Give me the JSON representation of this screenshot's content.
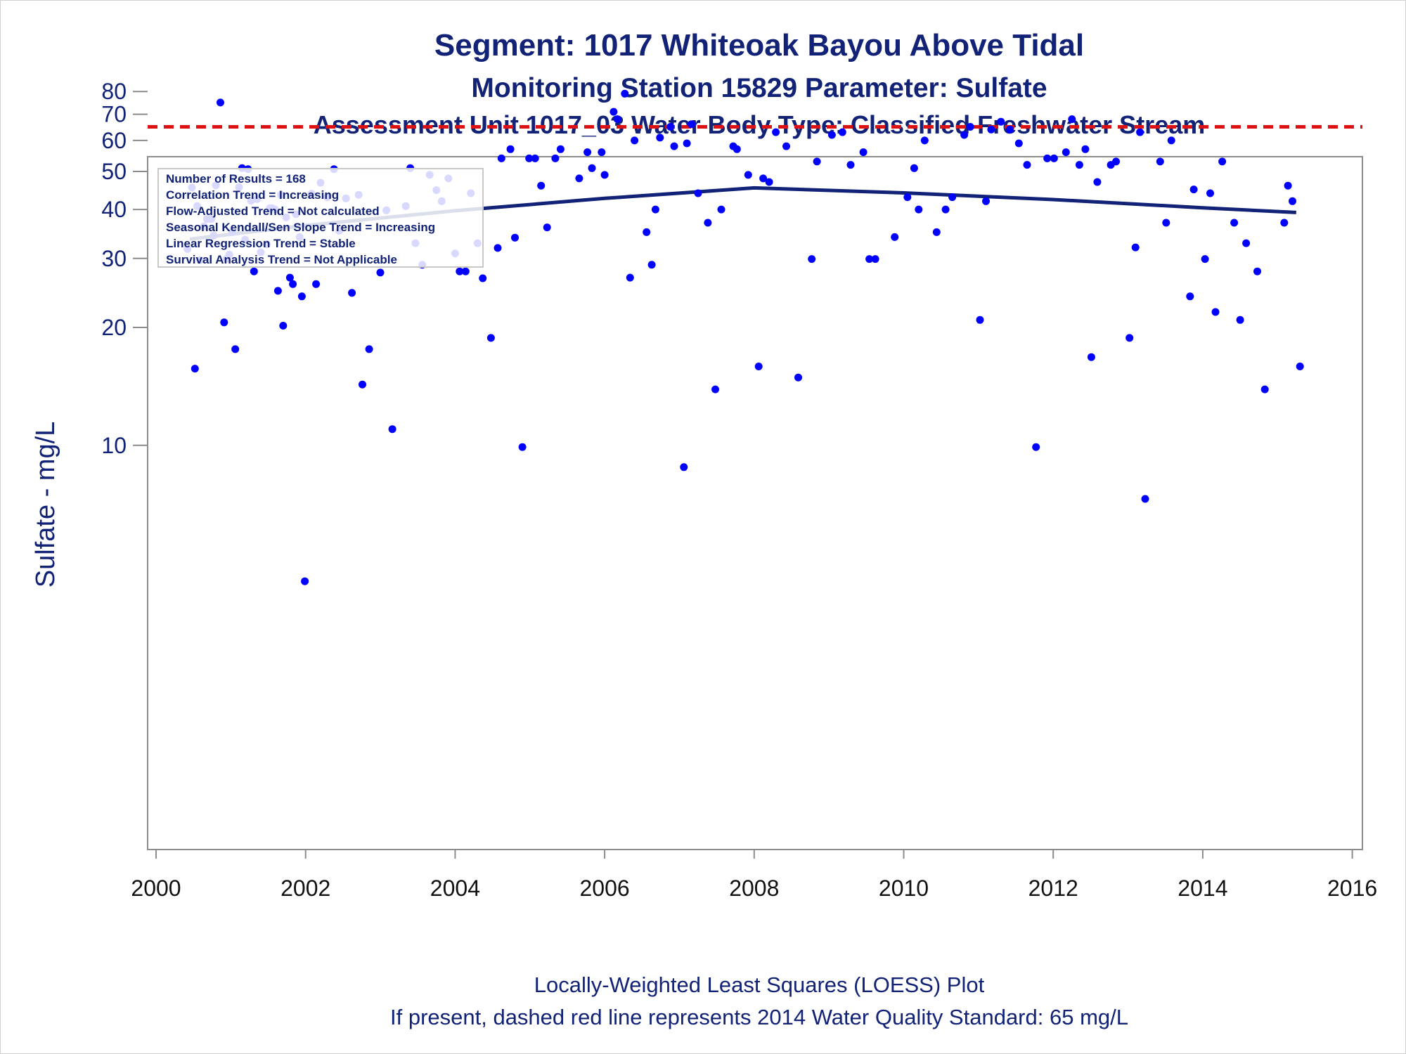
{
  "chart_data": {
    "type": "scatter",
    "title": "Segment: 1017  Whiteoak Bayou Above Tidal",
    "subtitle1": "Monitoring Station 15829 Parameter: Sulfate",
    "subtitle2": "Assessment Unit 1017_03   Water Body Type: Classified Freshwater Stream",
    "ylabel": "Sulfate - mg/L",
    "xlabel": "",
    "footnote1": "Locally-Weighted Least Squares (LOESS) Plot",
    "footnote2": "If present, dashed red line represents 2014 Water Quality Standard: 65    mg/L",
    "x_ticks": [
      "2000",
      "2002",
      "2004",
      "2006",
      "2008",
      "2010",
      "2012",
      "2014",
      "2016"
    ],
    "xlim": [
      2000,
      2016
    ],
    "y_ticks": [
      "10",
      "20",
      "30",
      "40",
      "50",
      "60",
      "70",
      "80"
    ],
    "y_scale": "log",
    "stats_box": [
      "Number of Results = 168",
      "Correlation Trend = Increasing",
      "Flow-Adjusted Trend = Not calculated",
      "Seasonal Kendall/Sen Slope Trend = Increasing",
      "Linear Regression Trend = Stable",
      "Survival Analysis Trend = Not Applicable"
    ],
    "standard": 65,
    "colors": {
      "points": "#0000ff",
      "loess": "#112277",
      "standard": "#dd1111",
      "text": "#112277"
    },
    "loess": [
      {
        "x": 2000.45,
        "y": 33.6
      },
      {
        "x": 2002.0,
        "y": 36.4
      },
      {
        "x": 2004.0,
        "y": 39.7
      },
      {
        "x": 2006.0,
        "y": 42.7
      },
      {
        "x": 2008.0,
        "y": 45.4
      },
      {
        "x": 2010.0,
        "y": 44.1
      },
      {
        "x": 2012.0,
        "y": 42.4
      },
      {
        "x": 2014.0,
        "y": 40.4
      },
      {
        "x": 2015.25,
        "y": 39.3
      }
    ],
    "points": [
      {
        "x": 2000.42,
        "y": 31.7
      },
      {
        "x": 2000.48,
        "y": 45.5
      },
      {
        "x": 2000.52,
        "y": 15.7
      },
      {
        "x": 2000.55,
        "y": 40.8
      },
      {
        "x": 2000.59,
        "y": 29.7
      },
      {
        "x": 2000.64,
        "y": 36.2
      },
      {
        "x": 2000.68,
        "y": 37.8
      },
      {
        "x": 2000.74,
        "y": 37.8
      },
      {
        "x": 2000.77,
        "y": 34.3
      },
      {
        "x": 2000.8,
        "y": 46.1
      },
      {
        "x": 2000.86,
        "y": 75.0
      },
      {
        "x": 2000.91,
        "y": 20.6
      },
      {
        "x": 2000.94,
        "y": 29.9
      },
      {
        "x": 2000.98,
        "y": 30.7
      },
      {
        "x": 2001.02,
        "y": 35.0
      },
      {
        "x": 2001.06,
        "y": 17.6
      },
      {
        "x": 2001.11,
        "y": 45.6
      },
      {
        "x": 2001.15,
        "y": 51.0
      },
      {
        "x": 2001.19,
        "y": 33.5
      },
      {
        "x": 2001.23,
        "y": 50.7
      },
      {
        "x": 2001.27,
        "y": 42.1
      },
      {
        "x": 2001.31,
        "y": 27.8
      },
      {
        "x": 2001.35,
        "y": 42.5
      },
      {
        "x": 2001.4,
        "y": 31.1
      },
      {
        "x": 2001.48,
        "y": 32.6
      },
      {
        "x": 2001.52,
        "y": 40.3
      },
      {
        "x": 2001.55,
        "y": 40.3
      },
      {
        "x": 2001.59,
        "y": 40.0
      },
      {
        "x": 2001.63,
        "y": 24.8
      },
      {
        "x": 2001.67,
        "y": 43.6
      },
      {
        "x": 2001.7,
        "y": 20.2
      },
      {
        "x": 2001.74,
        "y": 38.2
      },
      {
        "x": 2001.79,
        "y": 26.8
      },
      {
        "x": 2001.83,
        "y": 25.8
      },
      {
        "x": 2001.87,
        "y": 38.9
      },
      {
        "x": 2001.92,
        "y": 34.0
      },
      {
        "x": 2001.95,
        "y": 24.0
      },
      {
        "x": 2001.99,
        "y": 4.5
      },
      {
        "x": 2002.08,
        "y": 43.9
      },
      {
        "x": 2002.14,
        "y": 25.8
      },
      {
        "x": 2002.2,
        "y": 46.8
      },
      {
        "x": 2002.29,
        "y": 43.0
      },
      {
        "x": 2002.38,
        "y": 50.7
      },
      {
        "x": 2002.45,
        "y": 35.3
      },
      {
        "x": 2002.54,
        "y": 42.7
      },
      {
        "x": 2002.62,
        "y": 24.5
      },
      {
        "x": 2002.71,
        "y": 43.6
      },
      {
        "x": 2002.76,
        "y": 14.3
      },
      {
        "x": 2002.85,
        "y": 17.6
      },
      {
        "x": 2003.0,
        "y": 27.6
      },
      {
        "x": 2003.08,
        "y": 39.8
      },
      {
        "x": 2003.16,
        "y": 11.0
      },
      {
        "x": 2003.34,
        "y": 40.8
      },
      {
        "x": 2003.4,
        "y": 51.0
      },
      {
        "x": 2003.47,
        "y": 32.8
      },
      {
        "x": 2003.56,
        "y": 28.9
      },
      {
        "x": 2003.66,
        "y": 49.0
      },
      {
        "x": 2003.75,
        "y": 44.8
      },
      {
        "x": 2003.82,
        "y": 42.0
      },
      {
        "x": 2003.91,
        "y": 48.0
      },
      {
        "x": 2004.0,
        "y": 30.9
      },
      {
        "x": 2004.06,
        "y": 27.8
      },
      {
        "x": 2004.14,
        "y": 27.8
      },
      {
        "x": 2004.21,
        "y": 44.0
      },
      {
        "x": 2004.3,
        "y": 32.8
      },
      {
        "x": 2004.37,
        "y": 26.7
      },
      {
        "x": 2004.48,
        "y": 18.8
      },
      {
        "x": 2004.57,
        "y": 31.9
      },
      {
        "x": 2004.62,
        "y": 54.0
      },
      {
        "x": 2004.74,
        "y": 57.0
      },
      {
        "x": 2004.8,
        "y": 33.9
      },
      {
        "x": 2004.9,
        "y": 9.9
      },
      {
        "x": 2004.99,
        "y": 54.0
      },
      {
        "x": 2005.07,
        "y": 54.0
      },
      {
        "x": 2005.15,
        "y": 46.0
      },
      {
        "x": 2005.23,
        "y": 36.0
      },
      {
        "x": 2005.34,
        "y": 54.0
      },
      {
        "x": 2005.41,
        "y": 57.0
      },
      {
        "x": 2005.66,
        "y": 48.0
      },
      {
        "x": 2005.77,
        "y": 56.0
      },
      {
        "x": 2005.83,
        "y": 51.0
      },
      {
        "x": 2005.96,
        "y": 56.0
      },
      {
        "x": 2006.0,
        "y": 49.0
      },
      {
        "x": 2006.12,
        "y": 71.0
      },
      {
        "x": 2006.17,
        "y": 68.0
      },
      {
        "x": 2006.27,
        "y": 79.0
      },
      {
        "x": 2006.34,
        "y": 26.8
      },
      {
        "x": 2006.4,
        "y": 60.0
      },
      {
        "x": 2006.56,
        "y": 35.0
      },
      {
        "x": 2006.63,
        "y": 28.9
      },
      {
        "x": 2006.68,
        "y": 40.0
      },
      {
        "x": 2006.74,
        "y": 61.0
      },
      {
        "x": 2006.88,
        "y": 65.0
      },
      {
        "x": 2006.93,
        "y": 58.0
      },
      {
        "x": 2007.06,
        "y": 8.8
      },
      {
        "x": 2007.1,
        "y": 59.0
      },
      {
        "x": 2007.16,
        "y": 66.0
      },
      {
        "x": 2007.25,
        "y": 44.0
      },
      {
        "x": 2007.38,
        "y": 37.0
      },
      {
        "x": 2007.48,
        "y": 13.9
      },
      {
        "x": 2007.56,
        "y": 40.0
      },
      {
        "x": 2007.72,
        "y": 58.0
      },
      {
        "x": 2007.77,
        "y": 57.0
      },
      {
        "x": 2007.92,
        "y": 49.0
      },
      {
        "x": 2008.06,
        "y": 15.9
      },
      {
        "x": 2008.12,
        "y": 48.0
      },
      {
        "x": 2008.2,
        "y": 47.0
      },
      {
        "x": 2008.29,
        "y": 63.0
      },
      {
        "x": 2008.43,
        "y": 58.0
      },
      {
        "x": 2008.59,
        "y": 14.9
      },
      {
        "x": 2008.77,
        "y": 29.9
      },
      {
        "x": 2008.84,
        "y": 53.0
      },
      {
        "x": 2009.04,
        "y": 62.0
      },
      {
        "x": 2009.18,
        "y": 63.0
      },
      {
        "x": 2009.29,
        "y": 52.0
      },
      {
        "x": 2009.46,
        "y": 56.0
      },
      {
        "x": 2009.54,
        "y": 29.9
      },
      {
        "x": 2009.62,
        "y": 29.9
      },
      {
        "x": 2009.88,
        "y": 34.0
      },
      {
        "x": 2010.05,
        "y": 43.0
      },
      {
        "x": 2010.14,
        "y": 51.0
      },
      {
        "x": 2010.2,
        "y": 40.0
      },
      {
        "x": 2010.28,
        "y": 60.0
      },
      {
        "x": 2010.44,
        "y": 35.0
      },
      {
        "x": 2010.56,
        "y": 40.0
      },
      {
        "x": 2010.65,
        "y": 43.0
      },
      {
        "x": 2010.81,
        "y": 62.0
      },
      {
        "x": 2010.89,
        "y": 65.0
      },
      {
        "x": 2011.02,
        "y": 20.9
      },
      {
        "x": 2011.1,
        "y": 42.0
      },
      {
        "x": 2011.17,
        "y": 64.0
      },
      {
        "x": 2011.3,
        "y": 67.0
      },
      {
        "x": 2011.42,
        "y": 64.0
      },
      {
        "x": 2011.54,
        "y": 59.0
      },
      {
        "x": 2011.65,
        "y": 52.0
      },
      {
        "x": 2011.77,
        "y": 9.9
      },
      {
        "x": 2011.92,
        "y": 54.0
      },
      {
        "x": 2012.01,
        "y": 54.0
      },
      {
        "x": 2012.17,
        "y": 56.0
      },
      {
        "x": 2012.25,
        "y": 68.0
      },
      {
        "x": 2012.35,
        "y": 52.0
      },
      {
        "x": 2012.43,
        "y": 57.0
      },
      {
        "x": 2012.51,
        "y": 16.8
      },
      {
        "x": 2012.59,
        "y": 47.0
      },
      {
        "x": 2012.77,
        "y": 52.0
      },
      {
        "x": 2012.84,
        "y": 53.0
      },
      {
        "x": 2013.02,
        "y": 18.8
      },
      {
        "x": 2013.1,
        "y": 32.0
      },
      {
        "x": 2013.16,
        "y": 63.0
      },
      {
        "x": 2013.23,
        "y": 7.3
      },
      {
        "x": 2013.43,
        "y": 53.0
      },
      {
        "x": 2013.51,
        "y": 37.0
      },
      {
        "x": 2013.58,
        "y": 60.0
      },
      {
        "x": 2013.83,
        "y": 24.0
      },
      {
        "x": 2013.88,
        "y": 45.0
      },
      {
        "x": 2014.03,
        "y": 29.9
      },
      {
        "x": 2014.1,
        "y": 44.0
      },
      {
        "x": 2014.17,
        "y": 21.9
      },
      {
        "x": 2014.26,
        "y": 53.0
      },
      {
        "x": 2014.42,
        "y": 37.0
      },
      {
        "x": 2014.5,
        "y": 20.9
      },
      {
        "x": 2014.58,
        "y": 32.8
      },
      {
        "x": 2014.73,
        "y": 27.8
      },
      {
        "x": 2014.83,
        "y": 13.9
      },
      {
        "x": 2015.09,
        "y": 37.0
      },
      {
        "x": 2015.14,
        "y": 46.0
      },
      {
        "x": 2015.2,
        "y": 42.0
      },
      {
        "x": 2015.3,
        "y": 15.9
      }
    ]
  }
}
